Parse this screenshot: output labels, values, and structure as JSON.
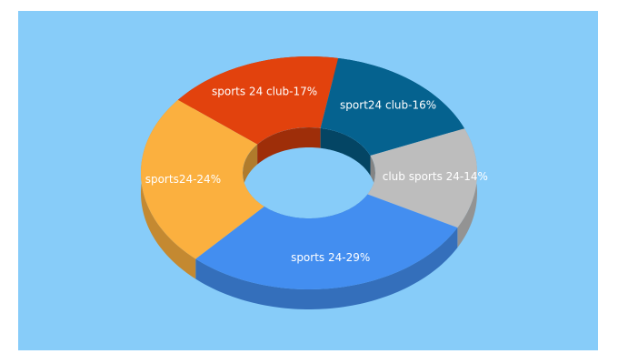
{
  "chart_data": {
    "type": "donut3d",
    "values": [
      17,
      16,
      14,
      29,
      24
    ],
    "value_labels": [
      "sports 24 club-17%",
      "sport24 club-16%",
      "club sports 24-14%",
      "sports 24-29%",
      "sports24-24%"
    ],
    "colors": [
      "#e2420d",
      "#05628f",
      "#bdbdbd",
      "#438ef0",
      "#fbb03f"
    ]
  }
}
